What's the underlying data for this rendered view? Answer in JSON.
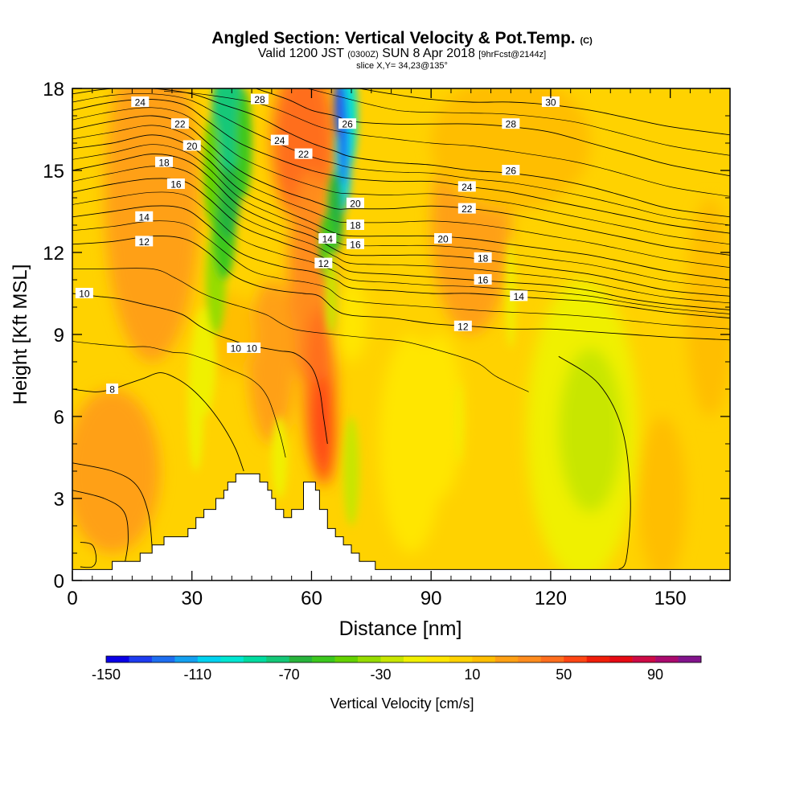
{
  "header": {
    "title": "Angled Section: Vertical Velocity & Pot.Temp.",
    "title_mark": "(C)",
    "valid_prefix": "Valid 1200 JST",
    "valid_utc": "(0300Z)",
    "valid_date": "SUN 8 Apr 2018",
    "forecast": "[9hrFcst@2144z]",
    "slice": "slice X,Y= 34,23@135°"
  },
  "chart_data": {
    "type": "heatmap",
    "xlabel": "Distance [nm]",
    "ylabel": "Height [Kft MSL]",
    "xlim": [
      0,
      165
    ],
    "ylim": [
      0,
      18
    ],
    "x_ticks": [
      "0",
      "30",
      "60",
      "90",
      "120",
      "150"
    ],
    "y_ticks": [
      "0",
      "3",
      "6",
      "9",
      "12",
      "15",
      "18"
    ],
    "fill_variable": "Vertical Velocity [cm/s]",
    "contour_variable": "Potential Temperature [°C]",
    "colorbar": {
      "label": "Vertical Velocity [cm/s]",
      "min": -150,
      "max": 110,
      "step": 10,
      "tick_labels": [
        "-150",
        "-110",
        "-70",
        "-30",
        "10",
        "50",
        "90"
      ],
      "colors": [
        "#0a00e6",
        "#1e3cf0",
        "#1e6ef0",
        "#14a0f0",
        "#00d2f0",
        "#00e6d2",
        "#00dca0",
        "#14c878",
        "#28b43c",
        "#3cc81e",
        "#64d200",
        "#96dc00",
        "#c8e600",
        "#f0f000",
        "#ffe600",
        "#ffd200",
        "#ffbe00",
        "#ffa014",
        "#ff8c1e",
        "#ff6e1e",
        "#ff4614",
        "#f01e0a",
        "#e60a14",
        "#cd0a46",
        "#aa0a6e",
        "#82148c"
      ]
    },
    "terrain_profile": [
      [
        0,
        0.4
      ],
      [
        10,
        0.4
      ],
      [
        10,
        0.7
      ],
      [
        17,
        0.7
      ],
      [
        17,
        1.0
      ],
      [
        20,
        1.0
      ],
      [
        20,
        1.3
      ],
      [
        23,
        1.3
      ],
      [
        23,
        1.6
      ],
      [
        29,
        1.6
      ],
      [
        29,
        1.9
      ],
      [
        31,
        1.9
      ],
      [
        31,
        2.3
      ],
      [
        33,
        2.3
      ],
      [
        33,
        2.6
      ],
      [
        36,
        2.6
      ],
      [
        36,
        3.0
      ],
      [
        38,
        3.0
      ],
      [
        38,
        3.3
      ],
      [
        39,
        3.3
      ],
      [
        39,
        3.6
      ],
      [
        41,
        3.6
      ],
      [
        41,
        3.9
      ],
      [
        47,
        3.9
      ],
      [
        47,
        3.6
      ],
      [
        49,
        3.6
      ],
      [
        49,
        3.3
      ],
      [
        50,
        3.3
      ],
      [
        50,
        3.0
      ],
      [
        51,
        3.0
      ],
      [
        51,
        2.6
      ],
      [
        53,
        2.6
      ],
      [
        53,
        2.3
      ],
      [
        55,
        2.3
      ],
      [
        55,
        2.6
      ],
      [
        58,
        2.6
      ],
      [
        58,
        3.6
      ],
      [
        61,
        3.6
      ],
      [
        61,
        3.3
      ],
      [
        62,
        3.3
      ],
      [
        62,
        2.6
      ],
      [
        64,
        2.6
      ],
      [
        64,
        1.9
      ],
      [
        66,
        1.9
      ],
      [
        66,
        1.6
      ],
      [
        68,
        1.6
      ],
      [
        68,
        1.3
      ],
      [
        70,
        1.3
      ],
      [
        70,
        1.0
      ],
      [
        72,
        1.0
      ],
      [
        72,
        0.7
      ],
      [
        76,
        0.7
      ],
      [
        76,
        0.4
      ],
      [
        165,
        0.4
      ]
    ],
    "contours": [
      {
        "label": "8",
        "label_at": [
          10,
          7.0
        ],
        "points": [
          [
            0,
            7.0
          ],
          [
            6,
            6.9
          ],
          [
            10,
            7.0
          ],
          [
            14,
            7.2
          ],
          [
            18,
            7.4
          ],
          [
            22,
            7.6
          ],
          [
            26,
            7.4
          ],
          [
            30,
            7.0
          ],
          [
            34,
            6.4
          ],
          [
            38,
            5.6
          ],
          [
            41,
            4.8
          ],
          [
            43,
            4.0
          ]
        ]
      },
      {
        "label": "10",
        "label_at": [
          45,
          8.5
        ],
        "points": [
          [
            0,
            10.5
          ],
          [
            6,
            10.4
          ],
          [
            12,
            10.3
          ],
          [
            18,
            10.1
          ],
          [
            24,
            9.9
          ],
          [
            28,
            9.7
          ],
          [
            32,
            9.3
          ],
          [
            36,
            9.0
          ],
          [
            40,
            8.8
          ],
          [
            44,
            8.6
          ],
          [
            48,
            8.5
          ],
          [
            52,
            8.4
          ],
          [
            56,
            8.3
          ],
          [
            60,
            7.8
          ],
          [
            62,
            7.0
          ],
          [
            63,
            6.0
          ],
          [
            64,
            5.0
          ]
        ]
      },
      {
        "label": "12",
        "label_at": [
          98,
          9.3
        ],
        "points": [
          [
            0,
            12.3
          ],
          [
            10,
            12.4
          ],
          [
            20,
            12.6
          ],
          [
            28,
            12.5
          ],
          [
            34,
            12.0
          ],
          [
            40,
            11.2
          ],
          [
            46,
            10.8
          ],
          [
            52,
            10.6
          ],
          [
            58,
            10.5
          ],
          [
            62,
            10.4
          ],
          [
            66,
            9.9
          ],
          [
            70,
            9.7
          ],
          [
            80,
            9.6
          ],
          [
            90,
            9.4
          ],
          [
            100,
            9.3
          ],
          [
            110,
            9.2
          ],
          [
            120,
            9.2
          ],
          [
            130,
            9.1
          ],
          [
            140,
            9.0
          ],
          [
            150,
            8.9
          ],
          [
            165,
            8.8
          ]
        ]
      },
      {
        "label": "14",
        "label_at": [
          112,
          10.4
        ],
        "points": [
          [
            0,
            13.3
          ],
          [
            10,
            13.5
          ],
          [
            20,
            13.7
          ],
          [
            28,
            13.6
          ],
          [
            34,
            13.0
          ],
          [
            42,
            12.0
          ],
          [
            52,
            11.5
          ],
          [
            60,
            11.3
          ],
          [
            66,
            11.0
          ],
          [
            70,
            10.7
          ],
          [
            80,
            10.6
          ],
          [
            90,
            10.5
          ],
          [
            100,
            10.5
          ],
          [
            110,
            10.4
          ],
          [
            120,
            10.3
          ],
          [
            130,
            10.2
          ],
          [
            140,
            10.0
          ],
          [
            150,
            9.8
          ],
          [
            165,
            9.6
          ]
        ]
      },
      {
        "label": "16",
        "label_at": [
          103,
          11.0
        ],
        "points": [
          [
            0,
            14.2
          ],
          [
            10,
            14.5
          ],
          [
            20,
            14.7
          ],
          [
            28,
            14.6
          ],
          [
            34,
            14.0
          ],
          [
            42,
            13.0
          ],
          [
            52,
            12.4
          ],
          [
            60,
            12.0
          ],
          [
            66,
            11.6
          ],
          [
            70,
            11.3
          ],
          [
            80,
            11.2
          ],
          [
            90,
            11.1
          ],
          [
            100,
            11.0
          ],
          [
            110,
            10.9
          ],
          [
            120,
            10.8
          ],
          [
            130,
            10.6
          ],
          [
            140,
            10.3
          ],
          [
            150,
            10.1
          ],
          [
            165,
            9.9
          ]
        ]
      },
      {
        "label": "18",
        "label_at": [
          103,
          11.8
        ],
        "points": [
          [
            0,
            15.0
          ],
          [
            10,
            15.3
          ],
          [
            20,
            15.6
          ],
          [
            28,
            15.4
          ],
          [
            34,
            14.8
          ],
          [
            42,
            13.7
          ],
          [
            52,
            13.0
          ],
          [
            60,
            12.6
          ],
          [
            66,
            12.1
          ],
          [
            70,
            11.9
          ],
          [
            80,
            11.9
          ],
          [
            90,
            11.9
          ],
          [
            100,
            11.8
          ],
          [
            110,
            11.6
          ],
          [
            120,
            11.4
          ],
          [
            130,
            11.2
          ],
          [
            140,
            10.9
          ],
          [
            150,
            10.6
          ],
          [
            165,
            10.4
          ]
        ]
      },
      {
        "label": "20",
        "label_at": [
          93,
          12.5
        ],
        "points": [
          [
            0,
            15.8
          ],
          [
            10,
            16.0
          ],
          [
            20,
            16.3
          ],
          [
            28,
            16.0
          ],
          [
            34,
            15.4
          ],
          [
            42,
            14.3
          ],
          [
            52,
            13.6
          ],
          [
            60,
            13.1
          ],
          [
            66,
            12.7
          ],
          [
            70,
            12.6
          ],
          [
            80,
            12.6
          ],
          [
            90,
            12.6
          ],
          [
            100,
            12.5
          ],
          [
            110,
            12.3
          ],
          [
            120,
            12.1
          ],
          [
            130,
            11.9
          ],
          [
            140,
            11.6
          ],
          [
            150,
            11.3
          ],
          [
            165,
            11.0
          ]
        ]
      },
      {
        "label": "22",
        "label_at": [
          99,
          13.6
        ],
        "points": [
          [
            0,
            16.5
          ],
          [
            10,
            16.8
          ],
          [
            20,
            17.0
          ],
          [
            28,
            16.7
          ],
          [
            34,
            16.0
          ],
          [
            42,
            15.0
          ],
          [
            52,
            14.3
          ],
          [
            60,
            13.9
          ],
          [
            66,
            13.6
          ],
          [
            70,
            13.6
          ],
          [
            80,
            13.6
          ],
          [
            90,
            13.7
          ],
          [
            100,
            13.6
          ],
          [
            110,
            13.4
          ],
          [
            120,
            13.1
          ],
          [
            130,
            12.8
          ],
          [
            140,
            12.5
          ],
          [
            150,
            12.2
          ],
          [
            165,
            11.9
          ]
        ]
      },
      {
        "label": "24",
        "label_at": [
          99,
          14.4
        ],
        "points": [
          [
            0,
            17.2
          ],
          [
            10,
            17.5
          ],
          [
            20,
            17.6
          ],
          [
            28,
            17.4
          ],
          [
            34,
            16.8
          ],
          [
            42,
            16.0
          ],
          [
            52,
            15.4
          ],
          [
            60,
            15.0
          ],
          [
            66,
            14.8
          ],
          [
            70,
            14.7
          ],
          [
            80,
            14.6
          ],
          [
            90,
            14.6
          ],
          [
            100,
            14.4
          ],
          [
            110,
            14.2
          ],
          [
            120,
            13.9
          ],
          [
            130,
            13.6
          ],
          [
            140,
            13.3
          ],
          [
            150,
            13.0
          ],
          [
            165,
            12.7
          ]
        ]
      },
      {
        "label": "26",
        "label_at": [
          110,
          15.0
        ],
        "points": [
          [
            0,
            17.8
          ],
          [
            10,
            18.0
          ],
          [
            20,
            18.0
          ],
          [
            30,
            17.8
          ],
          [
            38,
            17.4
          ],
          [
            46,
            17.0
          ],
          [
            54,
            16.4
          ],
          [
            60,
            16.0
          ],
          [
            66,
            15.7
          ],
          [
            70,
            15.5
          ],
          [
            80,
            15.3
          ],
          [
            90,
            15.2
          ],
          [
            100,
            15.0
          ],
          [
            110,
            14.9
          ],
          [
            120,
            14.7
          ],
          [
            130,
            14.4
          ],
          [
            140,
            14.0
          ],
          [
            150,
            13.6
          ],
          [
            165,
            13.3
          ]
        ]
      },
      {
        "label": "28",
        "label_at": [
          110,
          16.7
        ],
        "points": [
          [
            46,
            18.0
          ],
          [
            54,
            17.6
          ],
          [
            60,
            17.2
          ],
          [
            66,
            17.0
          ],
          [
            70,
            16.8
          ],
          [
            80,
            16.7
          ],
          [
            90,
            16.7
          ],
          [
            100,
            16.7
          ],
          [
            110,
            16.6
          ],
          [
            120,
            16.4
          ],
          [
            130,
            16.0
          ],
          [
            140,
            15.6
          ],
          [
            150,
            15.2
          ],
          [
            165,
            14.8
          ]
        ]
      },
      {
        "label": "30",
        "label_at": [
          120,
          17.5
        ],
        "points": [
          [
            72,
            18.0
          ],
          [
            80,
            17.8
          ],
          [
            90,
            17.6
          ],
          [
            100,
            17.5
          ],
          [
            110,
            17.5
          ],
          [
            120,
            17.4
          ],
          [
            130,
            17.2
          ],
          [
            140,
            16.9
          ],
          [
            150,
            16.6
          ],
          [
            165,
            16.3
          ]
        ]
      }
    ],
    "extra_labels": [
      {
        "text": "24",
        "at": [
          17,
          17.5
        ]
      },
      {
        "text": "22",
        "at": [
          27,
          16.7
        ]
      },
      {
        "text": "20",
        "at": [
          30,
          15.9
        ]
      },
      {
        "text": "18",
        "at": [
          23,
          15.3
        ]
      },
      {
        "text": "16",
        "at": [
          26,
          14.5
        ]
      },
      {
        "text": "14",
        "at": [
          18,
          13.3
        ]
      },
      {
        "text": "12",
        "at": [
          18,
          12.4
        ]
      },
      {
        "text": "10",
        "at": [
          3,
          10.5
        ]
      },
      {
        "text": "10",
        "at": [
          41,
          8.5
        ]
      },
      {
        "text": "28",
        "at": [
          47,
          17.6
        ]
      },
      {
        "text": "24",
        "at": [
          52,
          16.1
        ]
      },
      {
        "text": "22",
        "at": [
          58,
          15.6
        ]
      },
      {
        "text": "26",
        "at": [
          69,
          16.7
        ]
      },
      {
        "text": "20",
        "at": [
          71,
          13.8
        ]
      },
      {
        "text": "18",
        "at": [
          71,
          13.0
        ]
      },
      {
        "text": "16",
        "at": [
          71,
          12.3
        ]
      },
      {
        "text": "14",
        "at": [
          64,
          12.5
        ]
      },
      {
        "text": "12",
        "at": [
          63,
          11.6
        ]
      }
    ]
  }
}
